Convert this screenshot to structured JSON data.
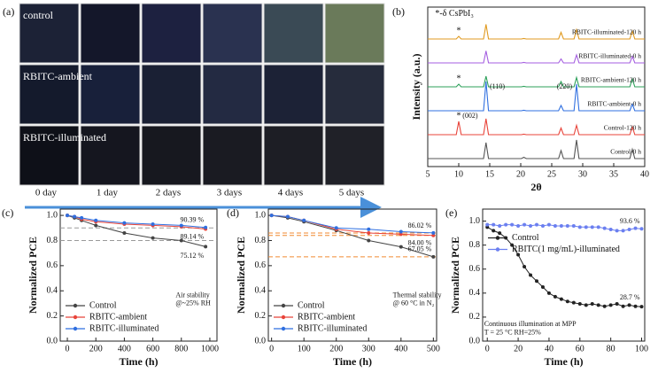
{
  "photo_grid": {
    "panel_label": "(a)",
    "row_labels": [
      "control",
      "RBITC-ambient",
      "RBITC-illuminated"
    ],
    "column_labels": [
      "0 day",
      "1 day",
      "2 days",
      "3 days",
      "4 days",
      "5 days"
    ]
  },
  "chart_data": [
    {
      "type": "line",
      "panel_label": "(b)",
      "x_label": "2θ",
      "y_label": "Intensity (a.u.)",
      "x": [
        5,
        9.6,
        10,
        10.4,
        14,
        14.4,
        14.8,
        20.1,
        20.5,
        20.9,
        26.1,
        26.5,
        26.9,
        28.6,
        29,
        29.4,
        37.6,
        38,
        38.4,
        40
      ],
      "xlim": [
        5,
        40
      ],
      "xticks": [
        5,
        10,
        15,
        20,
        25,
        30,
        35,
        40
      ],
      "ylim": [
        0,
        6
      ],
      "markers": false,
      "series": [
        {
          "name": "Control-0 h",
          "color": "#555555",
          "values": [
            0.3,
            0.3,
            0.3,
            0.3,
            0.3,
            0.9,
            0.3,
            0.3,
            0.35,
            0.3,
            0.3,
            0.6,
            0.3,
            0.3,
            1.0,
            0.3,
            0.3,
            0.65,
            0.3,
            0.3
          ]
        },
        {
          "name": "Control-120 h",
          "color": "#e8443a",
          "values": [
            1.2,
            1.2,
            1.7,
            1.2,
            1.2,
            1.8,
            1.2,
            1.2,
            1.22,
            1.2,
            1.2,
            1.45,
            1.2,
            1.2,
            1.55,
            1.2,
            1.2,
            1.5,
            1.2,
            1.2
          ]
        },
        {
          "name": "RBITC-ambient-0 h",
          "color": "#2f6fe0",
          "values": [
            2.1,
            2.1,
            2.1,
            2.1,
            2.1,
            3.2,
            2.1,
            2.1,
            2.12,
            2.1,
            2.1,
            2.3,
            2.1,
            2.1,
            3.1,
            2.1,
            2.1,
            2.35,
            2.1,
            2.1
          ]
        },
        {
          "name": "RBITC-ambient-120 h",
          "color": "#2ca05a",
          "values": [
            3.0,
            3.0,
            3.1,
            3.0,
            3.0,
            3.4,
            3.0,
            3.0,
            3.02,
            3.0,
            3.0,
            3.2,
            3.0,
            3.0,
            3.35,
            3.0,
            3.0,
            3.3,
            3.0,
            3.0
          ]
        },
        {
          "name": "RBITC-illuminated-0 h",
          "color": "#a45ee0",
          "values": [
            3.9,
            3.9,
            3.9,
            3.9,
            3.9,
            4.35,
            3.9,
            3.9,
            3.92,
            3.9,
            3.9,
            4.05,
            3.9,
            3.9,
            4.2,
            3.9,
            3.9,
            4.15,
            3.9,
            3.9
          ]
        },
        {
          "name": "RBITC-illuminated-120 h",
          "color": "#e09a20",
          "values": [
            4.8,
            4.8,
            4.9,
            4.8,
            4.8,
            5.35,
            4.8,
            4.8,
            4.82,
            4.8,
            4.8,
            5.05,
            4.8,
            4.8,
            5.15,
            4.8,
            4.8,
            5.1,
            4.8,
            4.8
          ]
        }
      ],
      "annotations": [
        "*-δ CsPbI₃",
        "*",
        "*",
        "*",
        "(002)",
        "(110)",
        "(220)"
      ]
    },
    {
      "type": "line",
      "panel_label": "(c)",
      "x_label": "Time (h)",
      "y_label": "Normalized PCE",
      "x": [
        0,
        50,
        100,
        200,
        400,
        600,
        800,
        970
      ],
      "xlim": [
        -50,
        1050
      ],
      "xticks": [
        0,
        200,
        400,
        600,
        800,
        1000
      ],
      "ylim": [
        0,
        1.05
      ],
      "yticks": [
        {
          "value": 0,
          "label": "0.0"
        },
        0.2,
        0.4,
        0.6,
        0.8,
        {
          "value": 1,
          "label": "1.0"
        }
      ],
      "markers": true,
      "legend": "lower left",
      "reference_lines": {
        "values": [
          0.9,
          0.8
        ],
        "color": "#999999"
      },
      "series": [
        {
          "name": "Control",
          "color": "#444444",
          "values": [
            1,
            0.98,
            0.96,
            0.92,
            0.86,
            0.82,
            0.8,
            0.7512
          ],
          "value_labels": [
            null,
            null,
            null,
            null,
            null,
            null,
            null,
            "75.12 %"
          ]
        },
        {
          "name": "RBITC-ambient",
          "color": "#e8443a",
          "values": [
            1,
            0.99,
            0.97,
            0.95,
            0.93,
            0.92,
            0.91,
            0.8914
          ],
          "value_labels": [
            null,
            null,
            null,
            null,
            null,
            null,
            null,
            "89.14 %"
          ]
        },
        {
          "name": "RBITC-illuminated",
          "color": "#2f6fe0",
          "values": [
            1,
            0.99,
            0.98,
            0.96,
            0.94,
            0.93,
            0.92,
            0.9039
          ],
          "value_labels": [
            null,
            null,
            null,
            null,
            null,
            null,
            null,
            "90.39 %"
          ]
        }
      ],
      "annotations": [
        "Air stability",
        "@~25% RH"
      ]
    },
    {
      "type": "line",
      "panel_label": "(d)",
      "x_label": "Time (h)",
      "y_label": "Normalized PCE",
      "x": [
        0,
        50,
        100,
        200,
        300,
        400,
        500
      ],
      "xlim": [
        -10,
        510
      ],
      "xticks": [
        0,
        100,
        200,
        300,
        400,
        500
      ],
      "ylim": [
        0,
        1.05
      ],
      "yticks": [
        {
          "value": 0,
          "label": "0.0"
        },
        0.2,
        0.4,
        0.6,
        0.8,
        {
          "value": 1,
          "label": "1.0"
        }
      ],
      "markers": true,
      "legend": "lower left",
      "reference_lines": {
        "values": [
          0.86,
          0.84,
          0.67
        ],
        "color": "#f08a30"
      },
      "series": [
        {
          "name": "Control",
          "color": "#444444",
          "values": [
            1,
            0.98,
            0.95,
            0.88,
            0.8,
            0.75,
            0.6705
          ],
          "value_labels": [
            null,
            null,
            null,
            null,
            null,
            null,
            "67.05 %"
          ]
        },
        {
          "name": "RBITC-ambient",
          "color": "#e8443a",
          "values": [
            1,
            0.99,
            0.96,
            0.89,
            0.86,
            0.85,
            0.84
          ],
          "value_labels": [
            null,
            null,
            null,
            null,
            null,
            null,
            "84.00 %"
          ]
        },
        {
          "name": "RBITC-illuminated",
          "color": "#2f6fe0",
          "values": [
            1,
            0.99,
            0.96,
            0.9,
            0.89,
            0.87,
            0.8602
          ],
          "value_labels": [
            null,
            null,
            null,
            null,
            null,
            null,
            "86.02 %"
          ]
        }
      ],
      "annotations": [
        "Thermal stability",
        "@ 60 °C in N₂"
      ]
    },
    {
      "type": "line",
      "panel_label": "(e)",
      "x_label": "Time (h)",
      "y_label": "Normalized PCE",
      "x": [
        0,
        4,
        8,
        12,
        16,
        20,
        24,
        28,
        32,
        36,
        40,
        44,
        48,
        52,
        56,
        60,
        64,
        68,
        72,
        76,
        80,
        84,
        88,
        92,
        96,
        100
      ],
      "xlim": [
        -3,
        102
      ],
      "xticks": [
        0,
        20,
        40,
        60,
        80,
        100
      ],
      "ylim": [
        0,
        1.1
      ],
      "yticks": [
        {
          "value": 0,
          "label": "0.0"
        },
        0.2,
        0.4,
        0.6,
        0.8,
        {
          "value": 1,
          "label": "1.0"
        }
      ],
      "markers": true,
      "legend": "upper left",
      "series": [
        {
          "name": "Control",
          "color": "#222222",
          "values": [
            0.95,
            0.92,
            0.9,
            0.86,
            0.8,
            0.72,
            0.62,
            0.55,
            0.5,
            0.45,
            0.4,
            0.37,
            0.35,
            0.33,
            0.32,
            0.31,
            0.3,
            0.31,
            0.3,
            0.29,
            0.3,
            0.31,
            0.29,
            0.3,
            0.29,
            0.287
          ],
          "value_labels": [
            null,
            null,
            null,
            null,
            null,
            null,
            null,
            null,
            null,
            null,
            null,
            null,
            null,
            null,
            null,
            null,
            null,
            null,
            null,
            null,
            null,
            null,
            null,
            null,
            null,
            "28.7 %"
          ]
        },
        {
          "name": "RBITC(1 mg/mL)-illuminated",
          "color": "#6b7ff0",
          "values": [
            0.97,
            0.97,
            0.96,
            0.97,
            0.97,
            0.96,
            0.97,
            0.96,
            0.97,
            0.96,
            0.97,
            0.96,
            0.96,
            0.96,
            0.96,
            0.95,
            0.95,
            0.95,
            0.95,
            0.94,
            0.93,
            0.92,
            0.92,
            0.93,
            0.94,
            0.936
          ],
          "value_labels": [
            null,
            null,
            null,
            null,
            null,
            null,
            null,
            null,
            null,
            null,
            null,
            null,
            null,
            null,
            null,
            null,
            null,
            null,
            null,
            null,
            null,
            null,
            null,
            null,
            null,
            "93.6 %"
          ]
        }
      ],
      "annotations": [
        "Continuous illumination at MPP",
        "T = 25 °C     RH=25%"
      ]
    }
  ]
}
